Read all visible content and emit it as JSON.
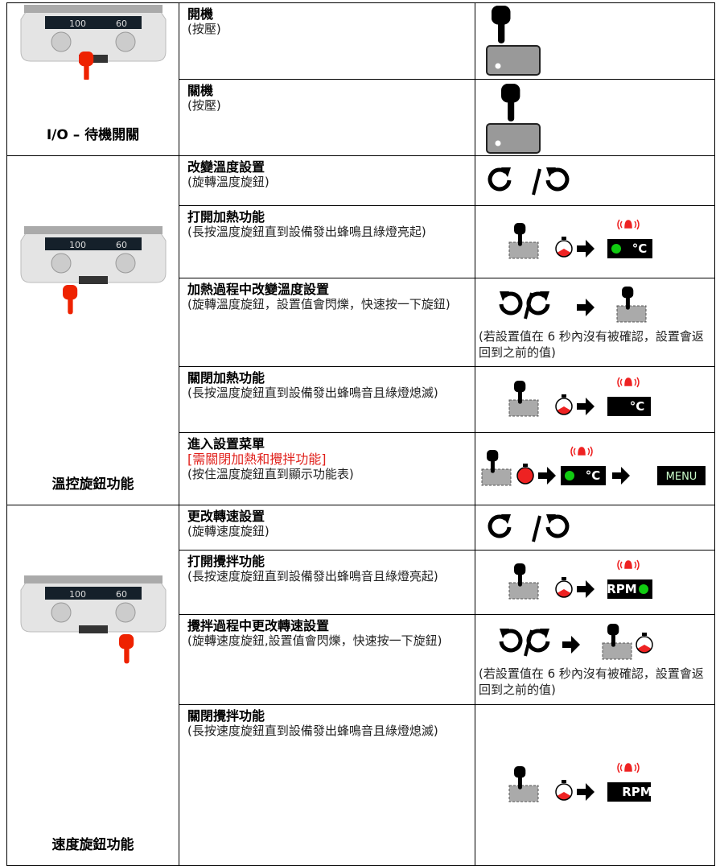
{
  "device_readout": [
    "100",
    "60"
  ],
  "sections": [
    {
      "label": "I/O – 待機開關",
      "rows": [
        {
          "title": "開機",
          "desc": "(按壓)"
        },
        {
          "title": "關機",
          "desc": "(按壓)"
        }
      ]
    },
    {
      "label": "溫控旋鈕功能",
      "rows": [
        {
          "title": "改變溫度設置",
          "desc": "(旋轉溫度旋鈕)"
        },
        {
          "title": "打開加熱功能",
          "desc": "(長按溫度旋鈕直到設備發出蜂鳴且綠燈亮起)",
          "displays": [
            "°C"
          ]
        },
        {
          "title": "加熱過程中改變溫度設置",
          "desc": "(旋轉溫度旋鈕，設置值會閃爍，快速按一下旋鈕)",
          "note": "(若設置值在 6 秒內沒有被確認，設置會返回到之前的值)"
        },
        {
          "title": "關閉加熱功能",
          "desc": "(長按溫度旋鈕直到設備發出蜂鳴音且綠燈熄滅)",
          "displays": [
            "°C"
          ]
        },
        {
          "title": "進入設置菜單",
          "requirement": "[需關閉加熱和攪拌功能]",
          "desc": "(按住溫度旋鈕直到顯示功能表)",
          "displays": [
            "°C",
            "MENU"
          ]
        }
      ]
    },
    {
      "label": "速度旋鈕功能",
      "rows": [
        {
          "title": "更改轉速設置",
          "desc": "(旋轉速度旋鈕)"
        },
        {
          "title": "打開攪拌功能",
          "desc": "(長按速度旋鈕直到設備發出蜂鳴音且綠燈亮起)",
          "displays": [
            "RPM"
          ]
        },
        {
          "title": "攪拌過程中更改轉速設置",
          "desc": "(旋轉速度旋鈕,設置值會閃爍，快速按一下旋鈕)",
          "note": "(若設置值在 6 秒內沒有被確認，設置會返回到之前的值)"
        },
        {
          "title": "關閉攪拌功能",
          "desc": "(長按速度旋鈕直到設備發出蜂鳴音且綠燈熄滅)",
          "displays": [
            "RPM"
          ]
        }
      ]
    }
  ]
}
